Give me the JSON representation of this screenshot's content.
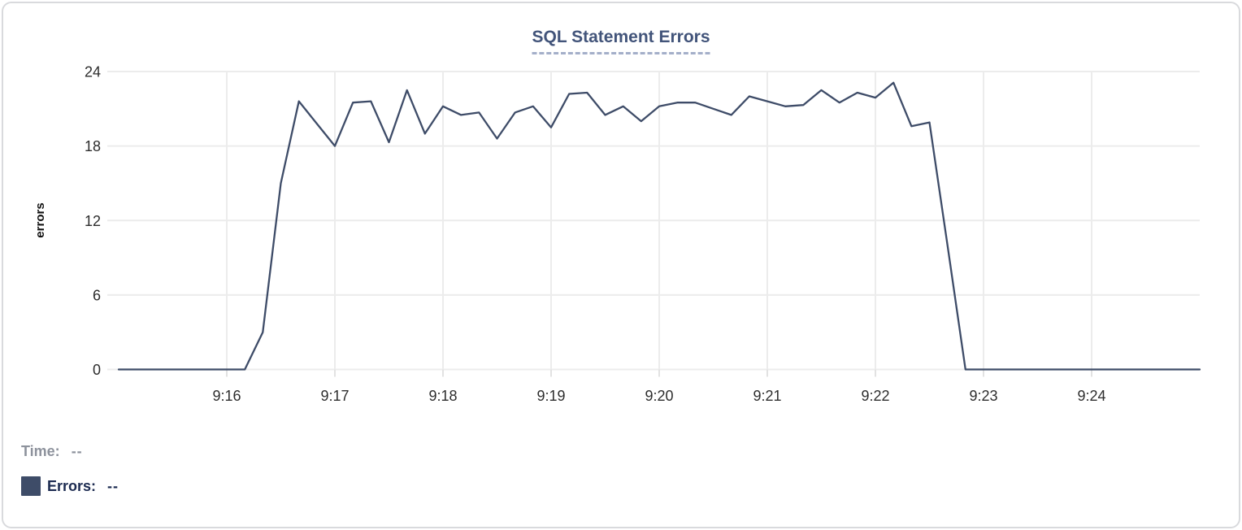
{
  "card": {
    "background": "#ffffff",
    "border_color": "#d9dadd"
  },
  "header": {
    "title": "SQL Statement Errors"
  },
  "chart_data": {
    "type": "line",
    "title": "SQL Statement Errors",
    "xlabel": "",
    "ylabel": "errors",
    "ylim": [
      0,
      24
    ],
    "y_ticks": [
      0,
      6,
      12,
      18,
      24
    ],
    "x_tick_labels": [
      "9:16",
      "9:17",
      "9:18",
      "9:19",
      "9:20",
      "9:21",
      "9:22",
      "9:23",
      "9:24"
    ],
    "grid": true,
    "legend_position": "bottom-left",
    "series": [
      {
        "name": "Errors",
        "color": "#3e4c68",
        "x": [
          "9:15:00",
          "9:15:10",
          "9:15:20",
          "9:15:30",
          "9:15:40",
          "9:15:50",
          "9:16:00",
          "9:16:10",
          "9:16:20",
          "9:16:30",
          "9:16:40",
          "9:16:50",
          "9:17:00",
          "9:17:10",
          "9:17:20",
          "9:17:30",
          "9:17:40",
          "9:17:50",
          "9:18:00",
          "9:18:10",
          "9:18:20",
          "9:18:30",
          "9:18:40",
          "9:18:50",
          "9:19:00",
          "9:19:10",
          "9:19:20",
          "9:19:30",
          "9:19:40",
          "9:19:50",
          "9:20:00",
          "9:20:10",
          "9:20:20",
          "9:20:30",
          "9:20:40",
          "9:20:50",
          "9:21:00",
          "9:21:10",
          "9:21:20",
          "9:21:30",
          "9:21:40",
          "9:21:50",
          "9:22:00",
          "9:22:10",
          "9:22:20",
          "9:22:30",
          "9:22:40",
          "9:22:50",
          "9:23:00",
          "9:23:10",
          "9:23:20",
          "9:23:30",
          "9:23:40",
          "9:23:50",
          "9:24:00",
          "9:24:10",
          "9:24:20",
          "9:24:30",
          "9:24:40",
          "9:24:50",
          "9:25:00"
        ],
        "values": [
          0,
          0,
          0,
          0,
          0,
          0,
          0,
          0,
          3,
          15,
          21.6,
          19.8,
          18,
          21.5,
          21.6,
          18.3,
          22.5,
          19,
          21.2,
          20.5,
          20.7,
          18.6,
          20.7,
          21.2,
          19.5,
          22.2,
          22.3,
          20.5,
          21.2,
          20,
          21.2,
          21.5,
          21.5,
          21,
          20.5,
          22,
          21.6,
          21.2,
          21.3,
          22.5,
          21.5,
          22.3,
          21.9,
          23.1,
          19.6,
          19.9,
          10,
          0,
          0,
          0,
          0,
          0,
          0,
          0,
          0,
          0,
          0,
          0,
          0,
          0,
          0
        ]
      }
    ]
  },
  "tooltip": {
    "time_label": "Time:",
    "time_value": "--",
    "errors_label": "Errors:",
    "errors_value": "--"
  },
  "colors": {
    "line": "#3e4c68",
    "swatch": "#3e4c68",
    "title": "#42547a",
    "title_underline": "#a4afc9",
    "axis_label": "#2d2d2d",
    "axis_title": "#111111",
    "grid": "#ececec",
    "tick": "#e2e2e2",
    "time_text": "#8d929c",
    "errors_text": "#1b2a50",
    "card_border": "#d9dadd"
  }
}
